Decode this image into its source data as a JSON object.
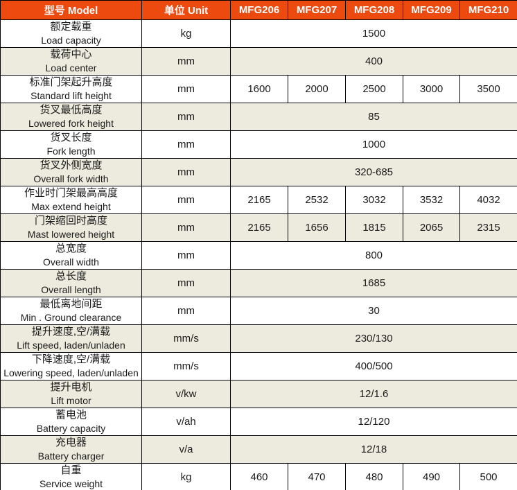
{
  "table": {
    "header": {
      "model_label": "型号 Model",
      "unit_label": "单位 Unit",
      "models": [
        "MFG206",
        "MFG207",
        "MFG208",
        "MFG209",
        "MFG210"
      ]
    },
    "rows": [
      {
        "cn": "额定载重",
        "en": "Load capacity",
        "unit": "kg",
        "merged": "1500"
      },
      {
        "cn": "载荷中心",
        "en": "Load center",
        "unit": "mm",
        "merged": "400"
      },
      {
        "cn": "标准门架起升高度",
        "en": "Standard lift height",
        "unit": "mm",
        "values": [
          "1600",
          "2000",
          "2500",
          "3000",
          "3500"
        ]
      },
      {
        "cn": "货叉最低高度",
        "en": "Lowered fork height",
        "unit": "mm",
        "merged": "85"
      },
      {
        "cn": "货叉长度",
        "en": "Fork length",
        "unit": "mm",
        "merged": "1000"
      },
      {
        "cn": "货叉外侧宽度",
        "en": "Overall fork width",
        "unit": "mm",
        "merged": "320-685"
      },
      {
        "cn": "作业时门架最高高度",
        "en": "Max extend height",
        "unit": "mm",
        "values": [
          "2165",
          "2532",
          "3032",
          "3532",
          "4032"
        ]
      },
      {
        "cn": "门架缩回时高度",
        "en": "Mast lowered height",
        "unit": "mm",
        "values": [
          "2165",
          "1656",
          "1815",
          "2065",
          "2315"
        ]
      },
      {
        "cn": "总宽度",
        "en": "Overall width",
        "unit": "mm",
        "merged": "800"
      },
      {
        "cn": "总长度",
        "en": "Overall length",
        "unit": "mm",
        "merged": "1685"
      },
      {
        "cn": "最低离地间距",
        "en": "Min . Ground clearance",
        "unit": "mm",
        "merged": "30"
      },
      {
        "cn": "提升速度,空/满载",
        "en": "Lift speed, laden/unladen",
        "unit": "mm/s",
        "merged": "230/130"
      },
      {
        "cn": "下降速度,空/满载",
        "en": "Lowering speed, laden/unladen",
        "unit": "mm/s",
        "merged": "400/500"
      },
      {
        "cn": "提升电机",
        "en": "Lift motor",
        "unit": "v/kw",
        "merged": "12/1.6"
      },
      {
        "cn": "蓄电池",
        "en": "Battery capacity",
        "unit": "v/ah",
        "merged": "12/120"
      },
      {
        "cn": "充电器",
        "en": "Battery charger",
        "unit": "v/a",
        "merged": "12/18"
      },
      {
        "cn": "自重",
        "en": "Service weight",
        "unit": "kg",
        "values": [
          "460",
          "470",
          "480",
          "490",
          "500"
        ]
      }
    ],
    "colors": {
      "header_bg": "#ED4A10",
      "header_text": "#FFFFFF",
      "stripe_bg": "#EDEBDE",
      "row_bg": "#FFFFFF",
      "border": "#000000",
      "text": "#1A1A1A"
    }
  }
}
